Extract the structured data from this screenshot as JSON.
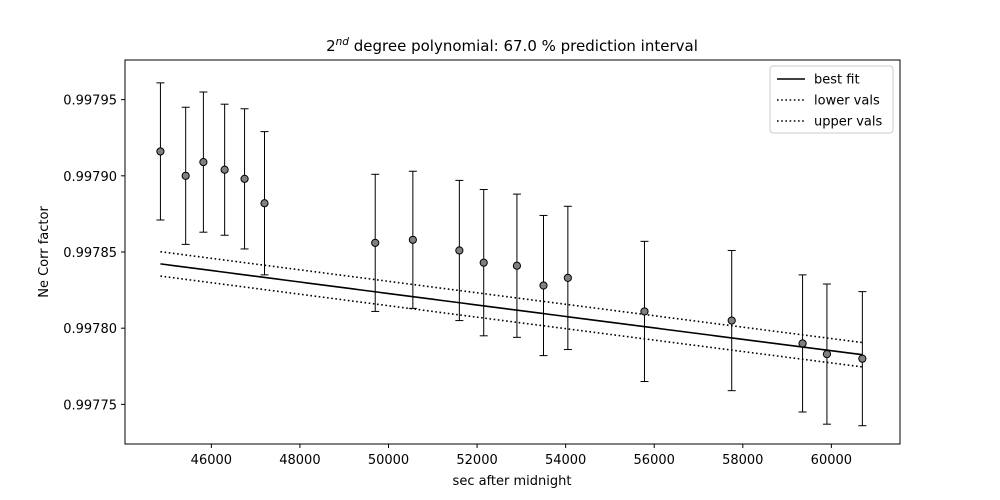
{
  "chart_data": {
    "type": "scatter",
    "title": {
      "prefix": "2",
      "superscript": "nd",
      "rest": " degree polynomial: 67.0 % prediction interval"
    },
    "xlabel": "sec after midnight",
    "ylabel": "Ne Corr factor",
    "xlim": [
      44050,
      61550
    ],
    "ylim": [
      0.997724,
      0.997976
    ],
    "x_ticks": [
      46000,
      48000,
      50000,
      52000,
      54000,
      56000,
      58000,
      60000
    ],
    "x_tick_labels": [
      "46000",
      "48000",
      "50000",
      "52000",
      "54000",
      "56000",
      "58000",
      "60000"
    ],
    "y_ticks": [
      0.99775,
      0.9978,
      0.99785,
      0.9979,
      0.99795
    ],
    "y_tick_labels": [
      "0.99775",
      "0.99780",
      "0.99785",
      "0.99790",
      "0.99795"
    ],
    "grid": false,
    "legend_position": "top-right",
    "series": [
      {
        "name": "best fit",
        "style": "solid",
        "color": "#000000",
        "fit_coeffs": [
          0.998015,
          -3.92e-09,
          1.5e-15
        ],
        "x_range": [
          44850,
          60700
        ]
      },
      {
        "name": "lower vals",
        "style": "dotted",
        "color": "#000000",
        "fit_coeffs": [
          0.998007,
          -3.92e-09,
          1.5e-15
        ],
        "x_range": [
          44850,
          60700
        ]
      },
      {
        "name": "upper vals",
        "style": "dotted",
        "color": "#000000",
        "fit_coeffs": [
          0.998023,
          -3.92e-09,
          1.5e-15
        ],
        "x_range": [
          44850,
          60700
        ]
      }
    ],
    "points": {
      "marker_color": "#808080",
      "x": [
        44850,
        45420,
        45820,
        46300,
        46750,
        47200,
        49700,
        50550,
        51600,
        52150,
        52900,
        53500,
        54050,
        55780,
        57750,
        59350,
        59900,
        60700
      ],
      "y": [
        0.997916,
        0.9979,
        0.997909,
        0.997904,
        0.997898,
        0.997882,
        0.997856,
        0.997858,
        0.997851,
        0.997843,
        0.997841,
        0.997828,
        0.997833,
        0.997811,
        0.997805,
        0.99779,
        0.997783,
        0.99778
      ],
      "err": [
        4.5e-05,
        4.5e-05,
        4.6e-05,
        4.3e-05,
        4.6e-05,
        4.7e-05,
        4.5e-05,
        4.5e-05,
        4.6e-05,
        4.8e-05,
        4.7e-05,
        4.6e-05,
        4.7e-05,
        4.6e-05,
        4.6e-05,
        4.5e-05,
        4.6e-05,
        4.4e-05
      ]
    }
  }
}
